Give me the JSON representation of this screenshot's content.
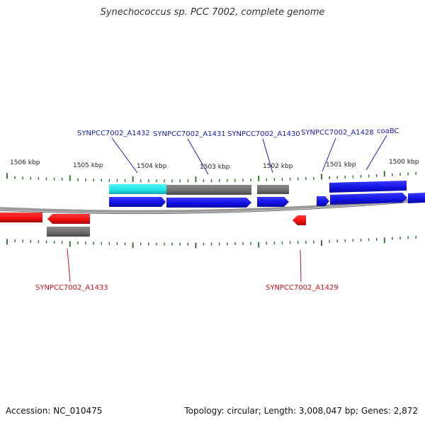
{
  "title": "Synechococcus sp. PCC 7002, complete genome",
  "footer": {
    "accession": "Accession: NC_010475",
    "topology": "Topology: circular; Length: 3,008,047 bp; Genes: 2,872"
  },
  "colors": {
    "forward_gene": "#1a1aee",
    "reverse_gene": "#ee1111",
    "rna_gray": "#6e6e6e",
    "highlight": "#22e6ea",
    "tick": "#2e7d2e",
    "label_forward": "#1a1ab0",
    "label_reverse": "#cc1111",
    "backbone": "#8a8a8a"
  },
  "kbp_labels": [
    "1506 kbp",
    "1505 kbp",
    "1504 kbp",
    "1503 kbp",
    "1502 kbp",
    "1501 kbp",
    "1500 kbp"
  ],
  "gene_labels": {
    "top": [
      "SYNPCC7002_A1432",
      "SYNPCC7002_A1431",
      "SYNPCC7002_A1430",
      "SYNPCC7002_A1428",
      "coaBC"
    ],
    "bottom": [
      "SYNPCC7002_A1433",
      "SYNPCC7002_A1429"
    ]
  }
}
